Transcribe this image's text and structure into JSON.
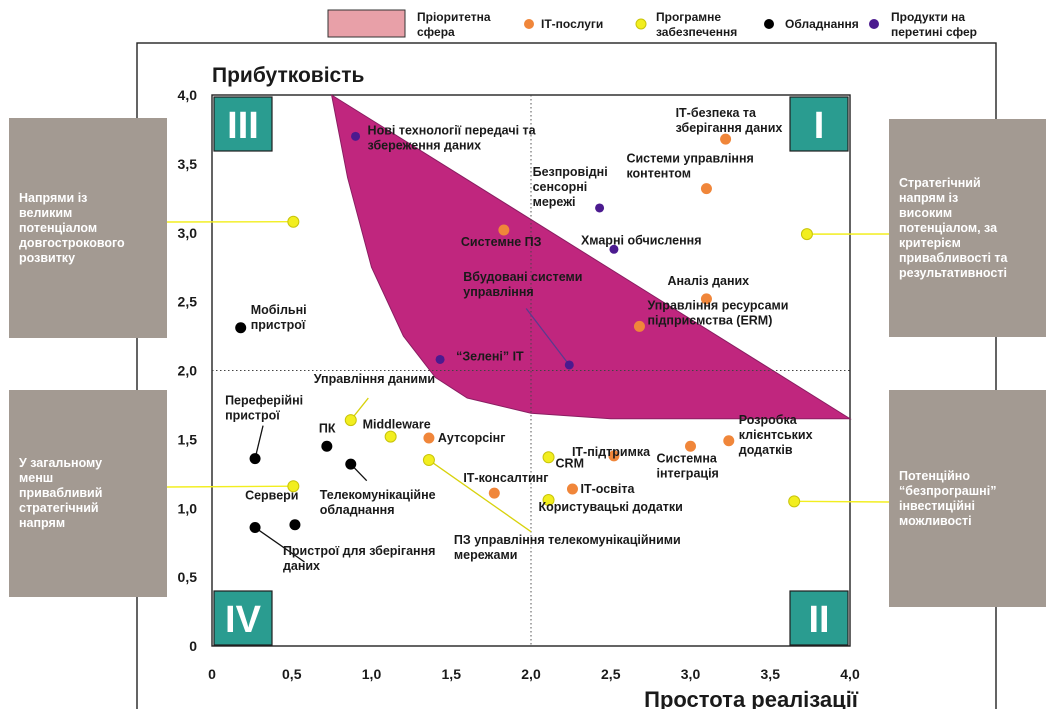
{
  "legend": {
    "priority_area": "Пріоритетна\nсфера",
    "it_services": "ІТ-послуги",
    "software": "Програмне\nзабезпечення",
    "hardware": "Обладнання",
    "cross_products": "Продукти на\nперетині сфер"
  },
  "colors": {
    "it_services": "#f0863a",
    "software": "#f2ee1f",
    "hardware": "#000000",
    "cross_products": "#4b1a8f",
    "priority_area": "#c0267e",
    "quadrant_box": "#2a9c90",
    "side_box": "#a39a92",
    "connector_yellow": "#f2ee1f"
  },
  "side_boxes": {
    "top_left": "Напрями із\nвеликим\nпотенціалом\nдовгострокового\nрозвитку",
    "bottom_left": "У загальному\nменш\nпривабливий\nстратегічний\nнапрям",
    "top_right": "Стратегічний\nнапрям із\nвисоким\nпотенціалом, за\nкритерієм\nпривабливості та\nрезультативності",
    "bottom_right": "Потенційно\n“безпрограшні”\nінвестиційні\nможливості"
  },
  "chart_data": {
    "type": "scatter",
    "title": "",
    "xlabel": "Простота реалізації",
    "ylabel": "Прибутковість",
    "xlim": [
      0,
      4.0
    ],
    "ylim": [
      0,
      4.0
    ],
    "x_ticks": [
      "0",
      "0,5",
      "1,0",
      "1,5",
      "2,0",
      "2,5",
      "3,0",
      "3,5",
      "4,0"
    ],
    "y_ticks": [
      "0",
      "0,5",
      "1,0",
      "1,5",
      "2,0",
      "2,5",
      "3,0",
      "3,5",
      "4,0"
    ],
    "divider": {
      "x": 2.0,
      "y": 2.0
    },
    "quadrants": [
      {
        "label": "I",
        "position": "top-right"
      },
      {
        "label": "II",
        "position": "bottom-right"
      },
      {
        "label": "III",
        "position": "top-left"
      },
      {
        "label": "IV",
        "position": "bottom-left"
      }
    ],
    "priority_region": [
      [
        0.75,
        4.0
      ],
      [
        4.0,
        1.65
      ],
      [
        3.3,
        1.65
      ],
      [
        2.5,
        1.65
      ],
      [
        2.0,
        1.69
      ],
      [
        1.6,
        1.8
      ],
      [
        1.4,
        1.95
      ],
      [
        1.2,
        2.25
      ],
      [
        1.0,
        2.75
      ],
      [
        0.85,
        3.4
      ],
      [
        0.75,
        4.0
      ]
    ],
    "series": [
      {
        "name": "ІТ-послуги",
        "category": "it_services",
        "points": [
          {
            "x": 3.22,
            "y": 3.68,
            "label": "ІТ-безпека та\nзберігання даних"
          },
          {
            "x": 3.1,
            "y": 3.32,
            "label": "Системи управління\nконтентом"
          },
          {
            "x": 1.83,
            "y": 3.02,
            "label": "Системне ПЗ"
          },
          {
            "x": 3.1,
            "y": 2.52,
            "label": "Аналіз даних"
          },
          {
            "x": 2.68,
            "y": 2.32,
            "label": "Управління ресурсами\nпідприємства (ERM)"
          },
          {
            "x": 1.36,
            "y": 1.51,
            "label": "Аутсорсінг"
          },
          {
            "x": 2.52,
            "y": 1.38,
            "label": "ІТ-підтримка"
          },
          {
            "x": 3.0,
            "y": 1.45,
            "label": "Системна\nінтеграція"
          },
          {
            "x": 3.24,
            "y": 1.49,
            "label": "Розробка\nклієнтських\nдодатків"
          },
          {
            "x": 1.77,
            "y": 1.11,
            "label": "ІТ-консалтинг"
          },
          {
            "x": 2.26,
            "y": 1.14,
            "label": "ІТ-освіта"
          }
        ]
      },
      {
        "name": "Програмне забезпечення",
        "category": "software",
        "points": [
          {
            "x": 0.87,
            "y": 1.64,
            "label": "Управління даними"
          },
          {
            "x": 1.12,
            "y": 1.52,
            "label": "Middleware"
          },
          {
            "x": 1.36,
            "y": 1.35,
            "label": "ПЗ управління телекомунікаційними\nмережами"
          },
          {
            "x": 2.11,
            "y": 1.37,
            "label": "CRM"
          },
          {
            "x": 2.11,
            "y": 1.06,
            "label": "Користувацькі додатки"
          },
          {
            "x": 0.51,
            "y": 3.08,
            "label": ""
          },
          {
            "x": 3.73,
            "y": 2.99,
            "label": ""
          },
          {
            "x": 0.51,
            "y": 1.16,
            "label": ""
          },
          {
            "x": 3.65,
            "y": 1.05,
            "label": ""
          }
        ]
      },
      {
        "name": "Обладнання",
        "category": "hardware",
        "points": [
          {
            "x": 0.18,
            "y": 2.31,
            "label": "Мобільні\nпристрої"
          },
          {
            "x": 0.27,
            "y": 1.36,
            "label": "Переферійні\nпристрої"
          },
          {
            "x": 0.72,
            "y": 1.45,
            "label": "ПК"
          },
          {
            "x": 0.87,
            "y": 1.32,
            "label": "Телекомунікаційне\nобладнання"
          },
          {
            "x": 0.27,
            "y": 0.86,
            "label": "Сервери"
          },
          {
            "x": 0.52,
            "y": 0.88,
            "label": "Пристрої для зберігання\nданих"
          }
        ]
      },
      {
        "name": "Продукти на перетині сфер",
        "category": "cross_products",
        "points": [
          {
            "x": 0.9,
            "y": 3.7,
            "label": "Нові технології передачі та\nзбереження даних"
          },
          {
            "x": 2.43,
            "y": 3.18,
            "label": "Безпровідні\nсенсорні\nмережі"
          },
          {
            "x": 2.52,
            "y": 2.88,
            "label": "Хмарні обчислення"
          },
          {
            "x": 2.24,
            "y": 2.04,
            "label": "Вбудовані системи\nуправління"
          },
          {
            "x": 1.43,
            "y": 2.08,
            "label": "“Зелені” ІТ"
          }
        ]
      }
    ]
  }
}
